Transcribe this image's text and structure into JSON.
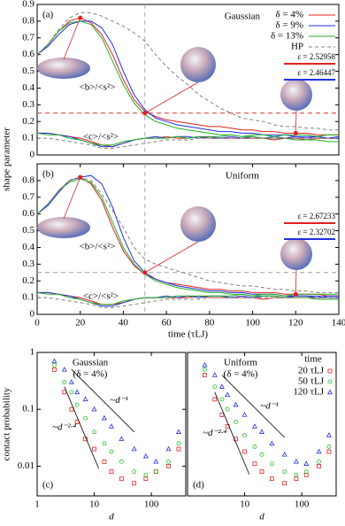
{
  "chart_data": [
    {
      "type": "line",
      "panel_label": "(a)",
      "title": "Gaussian",
      "b_label": "<b>/<s²>",
      "c_label": "<c>/<s²>",
      "xlim": [
        0,
        140
      ],
      "ylim": [
        0,
        0.9
      ],
      "yticks": [
        0,
        0.1,
        0.2,
        0.3,
        0.4,
        0.5,
        0.6,
        0.7,
        0.8,
        0.9
      ],
      "legend": "top-right",
      "hline": 0.25,
      "hline_color": "#e03030",
      "vline": 50,
      "x": [
        0,
        5,
        10,
        15,
        20,
        25,
        30,
        35,
        40,
        45,
        50,
        55,
        60,
        65,
        70,
        75,
        80,
        85,
        90,
        95,
        100,
        105,
        110,
        115,
        120,
        125,
        130,
        135,
        140
      ],
      "series": [
        {
          "name": "δ = 4%",
          "color": "#e02020",
          "values": [
            0.6,
            0.66,
            0.74,
            0.8,
            0.82,
            0.79,
            0.72,
            0.6,
            0.45,
            0.33,
            0.26,
            0.23,
            0.21,
            0.2,
            0.19,
            0.18,
            0.17,
            0.17,
            0.16,
            0.15,
            0.15,
            0.14,
            0.14,
            0.13,
            0.13,
            0.13,
            0.12,
            0.12,
            0.12
          ],
          "c_values": [
            0.13,
            0.13,
            0.12,
            0.11,
            0.1,
            0.08,
            0.06,
            0.05,
            0.07,
            0.09,
            0.1,
            0.1,
            0.11,
            0.1,
            0.1,
            0.11,
            0.1,
            0.1,
            0.1,
            0.1,
            0.1,
            0.1,
            0.09,
            0.1,
            0.1,
            0.09,
            0.1,
            0.1,
            0.1
          ]
        },
        {
          "name": "δ = 9%",
          "color": "#2030e0",
          "values": [
            0.6,
            0.65,
            0.72,
            0.78,
            0.8,
            0.8,
            0.76,
            0.66,
            0.5,
            0.36,
            0.27,
            0.22,
            0.2,
            0.18,
            0.17,
            0.16,
            0.15,
            0.14,
            0.14,
            0.13,
            0.13,
            0.12,
            0.12,
            0.12,
            0.11,
            0.11,
            0.11,
            0.1,
            0.1
          ],
          "c_values": [
            0.13,
            0.13,
            0.12,
            0.11,
            0.09,
            0.07,
            0.05,
            0.05,
            0.07,
            0.09,
            0.1,
            0.11,
            0.1,
            0.11,
            0.11,
            0.1,
            0.11,
            0.1,
            0.11,
            0.1,
            0.11,
            0.1,
            0.11,
            0.1,
            0.11,
            0.1,
            0.11,
            0.1,
            0.11
          ]
        },
        {
          "name": "δ = 13%",
          "color": "#20b020",
          "values": [
            0.6,
            0.66,
            0.74,
            0.79,
            0.8,
            0.78,
            0.7,
            0.56,
            0.42,
            0.31,
            0.24,
            0.2,
            0.18,
            0.16,
            0.15,
            0.14,
            0.13,
            0.12,
            0.12,
            0.11,
            0.11,
            0.1,
            0.1,
            0.1,
            0.09,
            0.09,
            0.09,
            0.08,
            0.08
          ],
          "c_values": [
            0.13,
            0.12,
            0.12,
            0.1,
            0.09,
            0.07,
            0.06,
            0.06,
            0.08,
            0.09,
            0.1,
            0.1,
            0.1,
            0.11,
            0.1,
            0.11,
            0.11,
            0.11,
            0.12,
            0.11,
            0.12,
            0.12,
            0.11,
            0.12,
            0.12,
            0.12,
            0.11,
            0.12,
            0.12
          ]
        },
        {
          "name": "HP",
          "color": "#808080",
          "dash": true,
          "values": [
            0.6,
            0.66,
            0.75,
            0.82,
            0.85,
            0.85,
            0.83,
            0.8,
            0.77,
            0.73,
            0.68,
            0.6,
            0.53,
            0.47,
            0.42,
            0.36,
            0.32,
            0.28,
            0.25,
            0.22,
            0.21,
            0.2,
            0.18,
            0.17,
            0.17,
            0.16,
            0.16,
            0.15,
            0.15
          ],
          "c_values": [
            0.1,
            0.1,
            0.09,
            0.08,
            0.07,
            0.06,
            0.04,
            0.04,
            0.05,
            0.06,
            0.07,
            0.08,
            0.09,
            0.09,
            0.09,
            0.1,
            0.1,
            0.1,
            0.1,
            0.1,
            0.1,
            0.1,
            0.1,
            0.1,
            0.1,
            0.1,
            0.1,
            0.1,
            0.1
          ]
        }
      ],
      "points": [
        {
          "x": 20,
          "y": 0.82
        },
        {
          "x": 50,
          "y": 0.25
        },
        {
          "x": 120,
          "y": 0.13
        }
      ],
      "epsilon_labels": [
        {
          "text": "ε = 2.52958",
          "color": "#e02020"
        },
        {
          "text": "ε = 2.46447",
          "color": "#2030e0"
        }
      ]
    },
    {
      "type": "line",
      "panel_label": "(b)",
      "title": "Uniform",
      "b_label": "<b>/<s²>",
      "c_label": "<c>/<s²>",
      "ylabel": "shape parameter",
      "xlabel": "time (τLJ)",
      "xlim": [
        0,
        140
      ],
      "xticks": [
        0,
        20,
        40,
        60,
        80,
        100,
        120,
        140
      ],
      "ylim": [
        0,
        0.9
      ],
      "yticks": [
        0,
        0.1,
        0.2,
        0.3,
        0.4,
        0.5,
        0.6,
        0.7,
        0.8
      ],
      "hline": 0.25,
      "hline_color": "#a0a0a0",
      "vline": 50,
      "x": [
        0,
        5,
        10,
        15,
        20,
        25,
        30,
        35,
        40,
        45,
        50,
        55,
        60,
        65,
        70,
        75,
        80,
        85,
        90,
        95,
        100,
        105,
        110,
        115,
        120,
        125,
        130,
        135,
        140
      ],
      "series": [
        {
          "color": "#e02020",
          "values": [
            0.6,
            0.66,
            0.74,
            0.8,
            0.82,
            0.78,
            0.68,
            0.52,
            0.38,
            0.29,
            0.24,
            0.21,
            0.19,
            0.18,
            0.17,
            0.16,
            0.15,
            0.15,
            0.14,
            0.14,
            0.13,
            0.13,
            0.13,
            0.12,
            0.12,
            0.12,
            0.12,
            0.11,
            0.11
          ],
          "c_values": [
            0.13,
            0.13,
            0.12,
            0.11,
            0.1,
            0.08,
            0.06,
            0.06,
            0.07,
            0.09,
            0.1,
            0.1,
            0.1,
            0.1,
            0.1,
            0.11,
            0.1,
            0.1,
            0.1,
            0.1,
            0.1,
            0.09,
            0.1,
            0.1,
            0.1,
            0.1,
            0.1,
            0.1,
            0.1
          ]
        },
        {
          "color": "#2030e0",
          "values": [
            0.6,
            0.65,
            0.73,
            0.8,
            0.82,
            0.83,
            0.78,
            0.64,
            0.46,
            0.32,
            0.25,
            0.21,
            0.19,
            0.17,
            0.16,
            0.15,
            0.14,
            0.14,
            0.13,
            0.13,
            0.12,
            0.12,
            0.12,
            0.11,
            0.11,
            0.11,
            0.11,
            0.1,
            0.1
          ],
          "c_values": [
            0.13,
            0.13,
            0.12,
            0.11,
            0.09,
            0.07,
            0.05,
            0.05,
            0.07,
            0.09,
            0.1,
            0.1,
            0.11,
            0.1,
            0.11,
            0.1,
            0.11,
            0.11,
            0.1,
            0.11,
            0.1,
            0.11,
            0.11,
            0.1,
            0.11,
            0.11,
            0.1,
            0.11,
            0.11
          ]
        },
        {
          "color": "#20b020",
          "values": [
            0.6,
            0.66,
            0.74,
            0.79,
            0.81,
            0.79,
            0.7,
            0.55,
            0.4,
            0.3,
            0.24,
            0.2,
            0.18,
            0.16,
            0.15,
            0.14,
            0.13,
            0.13,
            0.12,
            0.12,
            0.11,
            0.11,
            0.11,
            0.1,
            0.1,
            0.1,
            0.09,
            0.09,
            0.09
          ],
          "c_values": [
            0.13,
            0.12,
            0.12,
            0.1,
            0.09,
            0.07,
            0.06,
            0.06,
            0.08,
            0.09,
            0.1,
            0.1,
            0.1,
            0.11,
            0.11,
            0.11,
            0.11,
            0.11,
            0.11,
            0.12,
            0.11,
            0.12,
            0.12,
            0.11,
            0.12,
            0.12,
            0.12,
            0.12,
            0.12
          ]
        },
        {
          "color": "#808080",
          "dash": true,
          "values": [
            0.6,
            0.66,
            0.74,
            0.8,
            0.82,
            0.8,
            0.72,
            0.62,
            0.52,
            0.4,
            0.33,
            0.3,
            0.28,
            0.26,
            0.24,
            0.22,
            0.2,
            0.19,
            0.18,
            0.17,
            0.17,
            0.16,
            0.15,
            0.15,
            0.14,
            0.14,
            0.13,
            0.13,
            0.13
          ],
          "c_values": [
            0.1,
            0.1,
            0.09,
            0.08,
            0.07,
            0.06,
            0.04,
            0.04,
            0.05,
            0.06,
            0.07,
            0.08,
            0.09,
            0.09,
            0.09,
            0.09,
            0.1,
            0.1,
            0.1,
            0.1,
            0.1,
            0.1,
            0.1,
            0.1,
            0.1,
            0.1,
            0.1,
            0.1,
            0.1
          ]
        }
      ],
      "points": [
        {
          "x": 20,
          "y": 0.82
        },
        {
          "x": 50,
          "y": 0.25
        },
        {
          "x": 120,
          "y": 0.12
        }
      ],
      "epsilon_labels": [
        {
          "text": "ε = 2.67233",
          "color": "#e02020"
        },
        {
          "text": "ε = 2.32702",
          "color": "#2030e0"
        }
      ]
    },
    {
      "type": "scatter",
      "panel_label": "(c)",
      "title": "Gaussian",
      "subtitle": "(δ = 4%)",
      "ylabel": "contact probability",
      "xlabel": "d",
      "logx": true,
      "logy": true,
      "xlim": [
        1,
        400
      ],
      "ylim": [
        0.003,
        1
      ],
      "xticks": [
        1,
        10,
        100
      ],
      "yticks": [
        0.01,
        0.1,
        1
      ],
      "guides": [
        {
          "label": "~d⁻¹",
          "x": [
            4,
            50
          ],
          "y": [
            0.5,
            0.04
          ]
        },
        {
          "label": "~d⁻²·⁴",
          "x": [
            3,
            12
          ],
          "y": [
            0.25,
            0.009
          ]
        }
      ],
      "series": [
        {
          "marker": "square",
          "color": "#e02020",
          "x": [
            2,
            3,
            4,
            5,
            7,
            10,
            15,
            20,
            30,
            50,
            80,
            120,
            200,
            300
          ],
          "y": [
            0.5,
            0.2,
            0.1,
            0.06,
            0.03,
            0.02,
            0.012,
            0.008,
            0.006,
            0.005,
            0.006,
            0.008,
            0.01,
            0.02
          ]
        },
        {
          "marker": "circle",
          "color": "#20c020",
          "x": [
            2,
            3,
            4,
            5,
            7,
            10,
            15,
            20,
            30,
            50,
            80,
            120,
            200,
            300
          ],
          "y": [
            0.6,
            0.3,
            0.2,
            0.12,
            0.07,
            0.04,
            0.025,
            0.018,
            0.012,
            0.008,
            0.007,
            0.008,
            0.012,
            0.025
          ]
        },
        {
          "marker": "triangle",
          "color": "#2030e0",
          "x": [
            2,
            3,
            4,
            5,
            7,
            10,
            15,
            20,
            30,
            50,
            80,
            120,
            200,
            300
          ],
          "y": [
            0.7,
            0.5,
            0.3,
            0.2,
            0.15,
            0.1,
            0.07,
            0.05,
            0.03,
            0.02,
            0.015,
            0.012,
            0.02,
            0.04
          ]
        }
      ]
    },
    {
      "type": "scatter",
      "panel_label": "(d)",
      "title": "Uniform",
      "subtitle": "(δ = 4%)",
      "xlabel": "d",
      "logx": true,
      "logy": true,
      "xlim": [
        1,
        400
      ],
      "ylim": [
        0.003,
        1
      ],
      "xticks": [
        10,
        100
      ],
      "legend": "top-right",
      "legend_title": "time",
      "guides": [
        {
          "label": "~d⁻¹",
          "x": [
            4,
            50
          ],
          "y": [
            0.4,
            0.032
          ]
        },
        {
          "label": "~d⁻²·⁴",
          "x": [
            3,
            12
          ],
          "y": [
            0.2,
            0.0072
          ]
        }
      ],
      "series": [
        {
          "name": "20 τLJ",
          "marker": "square",
          "color": "#e02020",
          "x": [
            2,
            3,
            4,
            5,
            7,
            10,
            15,
            20,
            30,
            50,
            80,
            120,
            200,
            300
          ],
          "y": [
            0.4,
            0.15,
            0.08,
            0.05,
            0.03,
            0.018,
            0.011,
            0.008,
            0.006,
            0.005,
            0.006,
            0.007,
            0.01,
            0.018
          ]
        },
        {
          "name": "50 τLJ",
          "marker": "circle",
          "color": "#20c020",
          "x": [
            2,
            3,
            4,
            5,
            7,
            10,
            15,
            20,
            30,
            50,
            80,
            120,
            200,
            300
          ],
          "y": [
            0.5,
            0.25,
            0.15,
            0.1,
            0.06,
            0.035,
            0.022,
            0.016,
            0.011,
            0.008,
            0.007,
            0.008,
            0.012,
            0.022
          ]
        },
        {
          "name": "120 τLJ",
          "marker": "triangle",
          "color": "#2030e0",
          "x": [
            2,
            3,
            4,
            5,
            7,
            10,
            15,
            20,
            30,
            50,
            80,
            120,
            200,
            300
          ],
          "y": [
            0.6,
            0.4,
            0.25,
            0.18,
            0.12,
            0.08,
            0.05,
            0.04,
            0.025,
            0.016,
            0.012,
            0.011,
            0.018,
            0.035
          ]
        }
      ]
    }
  ]
}
